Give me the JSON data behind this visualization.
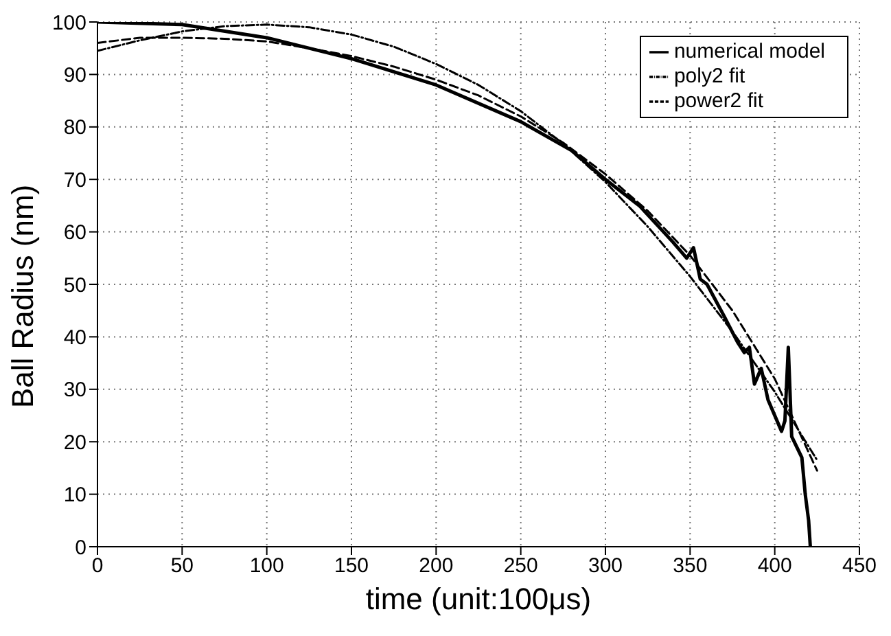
{
  "chart_data": {
    "type": "line",
    "xlabel": "time (unit:100μs)",
    "ylabel": "Ball Radius (nm)",
    "xlim": [
      0,
      450
    ],
    "xticks": [
      0,
      50,
      100,
      150,
      200,
      250,
      300,
      350,
      400,
      450
    ],
    "ylim": [
      0,
      100
    ],
    "yticks": [
      0,
      10,
      20,
      30,
      40,
      50,
      60,
      70,
      80,
      90,
      100
    ],
    "grid": true,
    "legend": "top right",
    "marker": "none",
    "series": [
      {
        "name": "numerical model",
        "color": "#000000",
        "line_style": "solid",
        "x": [
          0,
          50,
          100,
          150,
          200,
          250,
          280,
          300,
          320,
          340,
          348,
          352,
          356,
          360,
          370,
          378,
          382,
          385,
          388,
          392,
          396,
          400,
          404,
          406,
          408,
          410,
          413,
          416,
          418,
          420,
          421
        ],
        "values": [
          100,
          99.5,
          97,
          93,
          88,
          81,
          75.5,
          70,
          65,
          58,
          55,
          57,
          51,
          50,
          44,
          39,
          37,
          38,
          31,
          34,
          28,
          25,
          22,
          24,
          38,
          21,
          19,
          17,
          10,
          5,
          0
        ]
      },
      {
        "name": "poly2 fit",
        "color": "#000000",
        "line_style": "dashed-dot",
        "x": [
          0,
          25,
          50,
          75,
          100,
          125,
          150,
          175,
          200,
          225,
          250,
          275,
          300,
          325,
          350,
          375,
          400,
          425
        ],
        "values": [
          94.5,
          96.5,
          98.2,
          99.2,
          99.5,
          99,
          97.6,
          95.3,
          92,
          88,
          83,
          76.8,
          69.5,
          61,
          51.5,
          41,
          29.5,
          16.5
        ]
      },
      {
        "name": "power2 fit",
        "color": "#000000",
        "line_style": "dashed",
        "x": [
          0,
          25,
          50,
          75,
          100,
          125,
          150,
          175,
          200,
          225,
          250,
          275,
          300,
          325,
          350,
          375,
          400,
          425
        ],
        "values": [
          96,
          97,
          97,
          96.8,
          96.3,
          95,
          93.5,
          91.5,
          89,
          86,
          82,
          77,
          71,
          64,
          55.5,
          45,
          32,
          14.5
        ]
      }
    ]
  }
}
